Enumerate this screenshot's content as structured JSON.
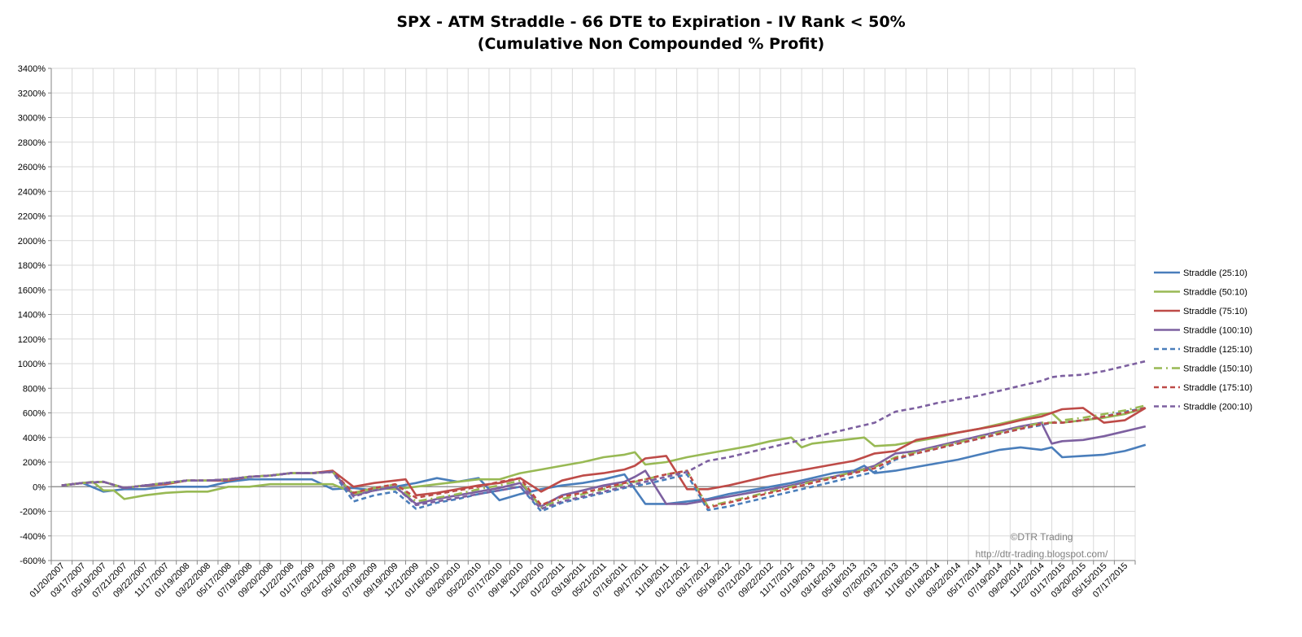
{
  "chart_data": {
    "type": "line",
    "title": "SPX - ATM Straddle - 66 DTE to Expiration - IV Rank < 50%",
    "subtitle": "(Cumulative Non Compounded % Profit)",
    "ylabel": "",
    "xlabel": "",
    "ylim": [
      -600,
      3400
    ],
    "y_ticks": [
      "-600%",
      "-400%",
      "-200%",
      "0%",
      "200%",
      "400%",
      "600%",
      "800%",
      "1000%",
      "1200%",
      "1400%",
      "1600%",
      "1800%",
      "2000%",
      "2200%",
      "2400%",
      "2600%",
      "2800%",
      "3000%",
      "3200%",
      "3400%"
    ],
    "x_tick_labels": [
      "01/20/2007",
      "03/17/2007",
      "05/19/2007",
      "07/21/2007",
      "09/22/2007",
      "11/17/2007",
      "01/19/2008",
      "03/22/2008",
      "05/17/2008",
      "07/19/2008",
      "09/20/2008",
      "11/22/2008",
      "01/17/2009",
      "03/21/2009",
      "05/16/2009",
      "07/18/2009",
      "09/19/2009",
      "11/21/2009",
      "01/16/2010",
      "03/20/2010",
      "05/22/2010",
      "07/17/2010",
      "09/18/2010",
      "11/20/2010",
      "01/22/2011",
      "03/19/2011",
      "05/21/2011",
      "07/16/2011",
      "09/17/2011",
      "11/19/2011",
      "01/21/2012",
      "03/17/2012",
      "05/19/2012",
      "07/21/2012",
      "09/22/2012",
      "11/17/2012",
      "01/19/2013",
      "03/16/2013",
      "05/18/2013",
      "07/20/2013",
      "09/21/2013",
      "11/16/2013",
      "01/18/2014",
      "03/22/2014",
      "05/17/2014",
      "07/19/2014",
      "09/20/2014",
      "11/22/2014",
      "01/17/2015",
      "03/20/2015",
      "05/15/2015",
      "07/17/2015"
    ],
    "grid": true,
    "legend_position": "right",
    "series": [
      {
        "name": "Straddle (25:10)",
        "color": "#4a7ebb",
        "dash": "solid",
        "x": [
          0,
          1,
          2,
          3,
          4,
          5,
          6,
          7,
          8,
          9,
          10,
          11,
          12,
          13,
          14,
          15,
          16,
          17,
          18,
          19,
          20,
          21,
          22,
          23,
          24,
          25,
          26,
          27,
          28,
          29,
          30,
          31,
          32,
          33,
          34,
          35,
          36,
          37,
          38,
          38.5,
          39,
          40,
          41,
          42,
          43,
          44,
          45,
          46,
          47,
          47.5,
          48,
          49,
          50,
          51,
          52
        ],
        "values": [
          10,
          30,
          -40,
          -20,
          -20,
          0,
          0,
          0,
          40,
          60,
          60,
          60,
          60,
          -20,
          -10,
          -30,
          0,
          30,
          70,
          40,
          70,
          -110,
          -60,
          -20,
          10,
          30,
          60,
          100,
          -140,
          -140,
          -120,
          -100,
          -60,
          -30,
          0,
          30,
          70,
          110,
          130,
          170,
          110,
          130,
          160,
          190,
          220,
          260,
          300,
          320,
          300,
          320,
          240,
          250,
          260,
          290,
          340
        ]
      },
      {
        "name": "Straddle (50:10)",
        "color": "#98b954",
        "dash": "solid",
        "x": [
          0,
          1,
          1.5,
          2,
          2.5,
          3,
          4,
          5,
          6,
          7,
          8,
          9,
          10,
          11,
          12,
          13,
          14,
          15,
          16,
          17,
          18,
          19,
          20,
          21,
          22,
          23,
          24,
          25,
          26,
          27,
          27.5,
          28,
          29,
          30,
          31,
          32,
          33,
          34,
          35,
          35.5,
          36,
          37,
          38,
          38.5,
          39,
          40,
          41,
          42,
          43,
          44,
          45,
          46,
          47,
          47.5,
          48,
          49,
          50,
          51,
          52
        ],
        "values": [
          10,
          30,
          40,
          -30,
          -30,
          -100,
          -70,
          -50,
          -40,
          -40,
          0,
          0,
          20,
          20,
          20,
          20,
          -50,
          -10,
          -20,
          0,
          20,
          40,
          60,
          60,
          110,
          140,
          170,
          200,
          240,
          260,
          280,
          180,
          200,
          240,
          270,
          300,
          330,
          370,
          400,
          320,
          350,
          370,
          390,
          400,
          330,
          340,
          370,
          400,
          440,
          470,
          510,
          550,
          590,
          600,
          520,
          540,
          560,
          590,
          640
        ]
      },
      {
        "name": "Straddle (75:10)",
        "color": "#be4b48",
        "dash": "solid",
        "x": [
          0,
          1,
          2,
          3,
          4,
          5,
          6,
          7,
          8,
          9,
          10,
          11,
          12,
          13,
          14,
          15,
          16,
          16.5,
          17,
          18,
          19,
          20,
          21,
          22,
          23,
          24,
          25,
          26,
          27,
          27.5,
          28,
          29,
          30,
          31,
          32,
          33,
          34,
          35,
          36,
          37,
          38,
          38.5,
          39,
          40,
          41,
          42,
          43,
          44,
          45,
          46,
          47,
          47.5,
          48,
          49,
          50,
          51,
          52
        ],
        "values": [
          10,
          30,
          40,
          -10,
          10,
          20,
          50,
          50,
          50,
          80,
          90,
          110,
          110,
          130,
          0,
          30,
          50,
          60,
          -70,
          -50,
          -20,
          10,
          30,
          70,
          -40,
          50,
          90,
          110,
          140,
          170,
          230,
          250,
          -20,
          -20,
          10,
          50,
          90,
          120,
          150,
          180,
          210,
          240,
          270,
          290,
          380,
          410,
          440,
          470,
          500,
          540,
          570,
          600,
          630,
          640,
          520,
          540,
          640
        ]
      },
      {
        "name": "Straddle (100:10)",
        "color": "#7d60a0",
        "dash": "solid",
        "x": [
          0,
          1,
          2,
          3,
          4,
          5,
          6,
          7,
          8,
          9,
          10,
          11,
          12,
          13,
          14,
          15,
          16,
          17,
          18,
          19,
          20,
          21,
          22,
          23,
          24,
          25,
          26,
          27,
          27.5,
          28,
          29,
          30,
          31,
          32,
          33,
          34,
          35,
          36,
          37,
          38,
          39,
          40,
          41,
          42,
          43,
          44,
          45,
          46,
          47,
          47.5,
          48,
          49,
          50,
          51,
          52
        ],
        "values": [
          10,
          30,
          40,
          -10,
          10,
          30,
          50,
          50,
          60,
          80,
          90,
          110,
          110,
          120,
          -70,
          -30,
          0,
          -140,
          -100,
          -70,
          -40,
          -10,
          30,
          -160,
          -70,
          -30,
          10,
          40,
          80,
          130,
          -140,
          -140,
          -110,
          -80,
          -50,
          -20,
          10,
          50,
          80,
          120,
          170,
          270,
          290,
          330,
          370,
          410,
          450,
          490,
          520,
          350,
          370,
          380,
          410,
          450,
          490
        ]
      },
      {
        "name": "Straddle (125:10)",
        "color": "#4a7ebb",
        "dash": "dash",
        "x": [
          0,
          1,
          2,
          3,
          4,
          5,
          6,
          7,
          8,
          9,
          10,
          11,
          12,
          13,
          14,
          15,
          16,
          17,
          18,
          19,
          20,
          21,
          22,
          23,
          24,
          25,
          26,
          27,
          28,
          29,
          30,
          31,
          32,
          33,
          34,
          35,
          36,
          37,
          38,
          39,
          40,
          41,
          42,
          43,
          44,
          45,
          46,
          47,
          47.5,
          48,
          49,
          50,
          51,
          52
        ],
        "values": [
          10,
          30,
          40,
          -10,
          10,
          30,
          50,
          50,
          60,
          80,
          90,
          110,
          110,
          120,
          -120,
          -70,
          -40,
          -180,
          -130,
          -100,
          -60,
          -30,
          0,
          -200,
          -130,
          -90,
          -50,
          -10,
          20,
          60,
          100,
          -190,
          -160,
          -120,
          -80,
          -40,
          0,
          40,
          80,
          120,
          220,
          270,
          310,
          350,
          390,
          430,
          470,
          500,
          520,
          520,
          540,
          570,
          610,
          640
        ]
      },
      {
        "name": "Straddle (150:10)",
        "color": "#98b954",
        "dash": "dashdot",
        "x": [
          0,
          1,
          2,
          3,
          4,
          5,
          6,
          7,
          8,
          9,
          10,
          11,
          12,
          13,
          14,
          15,
          16,
          17,
          18,
          19,
          20,
          21,
          22,
          23,
          24,
          25,
          26,
          27,
          28,
          29,
          30,
          31,
          32,
          33,
          34,
          35,
          36,
          37,
          38,
          39,
          40,
          41,
          42,
          43,
          44,
          45,
          46,
          47,
          47.5,
          48,
          49,
          50,
          51,
          52
        ],
        "values": [
          10,
          30,
          40,
          -10,
          10,
          30,
          50,
          50,
          60,
          80,
          90,
          110,
          110,
          120,
          -60,
          -20,
          20,
          -120,
          -90,
          -60,
          -20,
          10,
          50,
          -170,
          -100,
          -60,
          -20,
          20,
          60,
          100,
          130,
          -160,
          -120,
          -80,
          -40,
          0,
          40,
          80,
          120,
          160,
          240,
          280,
          320,
          360,
          400,
          440,
          480,
          520,
          520,
          540,
          560,
          590,
          620,
          660
        ]
      },
      {
        "name": "Straddle (175:10)",
        "color": "#be4b48",
        "dash": "dash",
        "x": [
          0,
          1,
          2,
          3,
          4,
          5,
          6,
          7,
          8,
          9,
          10,
          11,
          12,
          13,
          14,
          15,
          16,
          17,
          18,
          19,
          20,
          21,
          22,
          23,
          24,
          25,
          26,
          27,
          28,
          29,
          30,
          31,
          32,
          33,
          34,
          35,
          36,
          37,
          38,
          39,
          40,
          41,
          42,
          43,
          44,
          45,
          46,
          47,
          47.5,
          48,
          49,
          50,
          51,
          52
        ],
        "values": [
          10,
          30,
          40,
          -10,
          10,
          30,
          50,
          50,
          60,
          80,
          90,
          110,
          110,
          120,
          -50,
          -10,
          20,
          -90,
          -60,
          -30,
          0,
          40,
          70,
          -150,
          -80,
          -50,
          -10,
          30,
          60,
          100,
          130,
          -170,
          -130,
          -90,
          -50,
          -10,
          30,
          70,
          110,
          150,
          230,
          270,
          310,
          350,
          390,
          430,
          470,
          510,
          520,
          520,
          540,
          570,
          600,
          640
        ]
      },
      {
        "name": "Straddle (200:10)",
        "color": "#7d60a0",
        "dash": "dash",
        "x": [
          0,
          1,
          2,
          3,
          4,
          5,
          6,
          7,
          8,
          9,
          10,
          11,
          12,
          13,
          14,
          15,
          16,
          17,
          18,
          19,
          20,
          21,
          22,
          23,
          24,
          25,
          26,
          27,
          28,
          29,
          30,
          31,
          32,
          33,
          34,
          35,
          36,
          37,
          38,
          39,
          40,
          41,
          42,
          43,
          44,
          45,
          46,
          47,
          47.5,
          48,
          49,
          50,
          51,
          52
        ],
        "values": [
          10,
          30,
          40,
          -10,
          10,
          30,
          50,
          50,
          60,
          80,
          90,
          110,
          110,
          120,
          -80,
          -30,
          0,
          -150,
          -120,
          -90,
          -60,
          -30,
          0,
          -180,
          -120,
          -80,
          -40,
          0,
          40,
          80,
          120,
          210,
          240,
          280,
          320,
          360,
          400,
          440,
          480,
          520,
          610,
          640,
          680,
          710,
          740,
          780,
          820,
          860,
          890,
          900,
          910,
          940,
          980,
          1020
        ]
      }
    ]
  },
  "watermark": {
    "copyright": "©DTR Trading",
    "url": "http://dtr-trading.blogspot.com/"
  }
}
